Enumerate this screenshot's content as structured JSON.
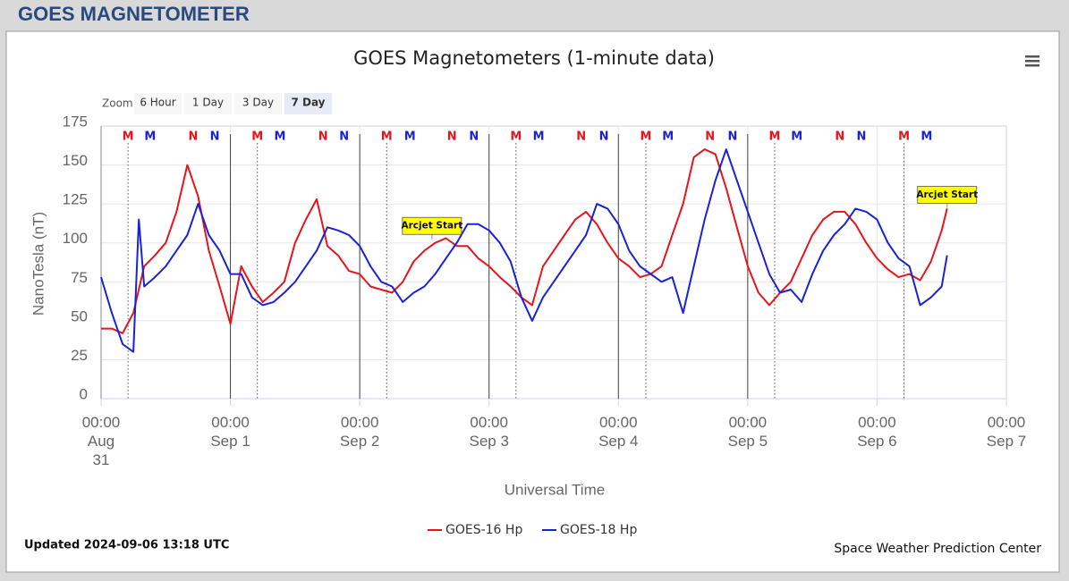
{
  "header": {
    "title": "GOES MAGNETOMETER"
  },
  "chart_data": {
    "type": "line",
    "title": "GOES Magnetometers (1-minute data)",
    "ylabel": "NanoTesla (nT)",
    "xlabel": "Universal Time",
    "xlim": [
      0,
      168
    ],
    "ylim": [
      0,
      175
    ],
    "yticks": [
      0,
      25,
      50,
      75,
      100,
      125,
      150,
      175
    ],
    "xticks": [
      {
        "value": 0,
        "label": "00:00 Aug 31"
      },
      {
        "value": 24,
        "label": "00:00 Sep 1"
      },
      {
        "value": 48,
        "label": "00:00 Sep 2"
      },
      {
        "value": 72,
        "label": "00:00 Sep 3"
      },
      {
        "value": 96,
        "label": "00:00 Sep 4"
      },
      {
        "value": 120,
        "label": "00:00 Sep 5"
      },
      {
        "value": 144,
        "label": "00:00 Sep 6"
      },
      {
        "value": 168,
        "label": "00:00 Sep 7"
      }
    ],
    "day_lines": [
      24,
      48,
      72,
      96,
      120
    ],
    "grid": true,
    "series": [
      {
        "name": "GOES-16 Hp",
        "color": "#e8141b",
        "x": [
          0,
          2,
          4,
          6,
          8,
          10,
          12,
          14,
          16,
          18,
          20,
          22,
          24,
          26,
          28,
          30,
          32,
          34,
          36,
          38,
          40,
          42,
          44,
          46,
          48,
          50,
          52,
          54,
          56,
          58,
          60,
          62,
          64,
          66,
          68,
          70,
          72,
          74,
          76,
          78,
          80,
          82,
          84,
          86,
          88,
          90,
          92,
          94,
          96,
          98,
          100,
          102,
          104,
          106,
          108,
          110,
          112,
          114,
          116,
          118,
          120,
          122,
          124,
          126,
          128,
          130,
          132,
          134,
          136,
          138,
          140,
          142,
          144,
          146,
          148,
          150,
          152,
          154,
          156,
          157
        ],
        "values": [
          45,
          45,
          42,
          55,
          85,
          92,
          100,
          120,
          150,
          130,
          95,
          72,
          48,
          85,
          72,
          62,
          68,
          75,
          100,
          115,
          128,
          98,
          92,
          82,
          80,
          72,
          70,
          68,
          75,
          88,
          95,
          100,
          103,
          98,
          98,
          90,
          85,
          78,
          72,
          65,
          60,
          85,
          95,
          105,
          115,
          120,
          112,
          100,
          90,
          85,
          78,
          80,
          85,
          105,
          125,
          155,
          160,
          157,
          135,
          110,
          85,
          68,
          60,
          68,
          75,
          90,
          105,
          115,
          120,
          120,
          112,
          100,
          90,
          83,
          78,
          80,
          76,
          88,
          108,
          122
        ]
      },
      {
        "name": "GOES-18 Hp",
        "color": "#1a22d8",
        "x": [
          0,
          2,
          4,
          6,
          7,
          8,
          10,
          12,
          14,
          16,
          18,
          20,
          22,
          24,
          26,
          28,
          30,
          32,
          34,
          36,
          38,
          40,
          42,
          44,
          46,
          48,
          50,
          52,
          54,
          56,
          58,
          60,
          62,
          64,
          66,
          68,
          70,
          72,
          74,
          76,
          78,
          80,
          82,
          84,
          86,
          88,
          90,
          92,
          94,
          96,
          98,
          100,
          102,
          104,
          106,
          108,
          110,
          112,
          114,
          116,
          118,
          120,
          122,
          124,
          126,
          128,
          130,
          132,
          134,
          136,
          138,
          140,
          142,
          144,
          146,
          148,
          150,
          152,
          154,
          156,
          157
        ],
        "values": [
          78,
          55,
          35,
          30,
          115,
          72,
          78,
          85,
          95,
          105,
          125,
          105,
          95,
          80,
          80,
          65,
          60,
          62,
          68,
          75,
          85,
          95,
          110,
          108,
          105,
          98,
          85,
          75,
          72,
          62,
          68,
          72,
          80,
          90,
          100,
          112,
          112,
          108,
          100,
          88,
          65,
          50,
          65,
          75,
          85,
          95,
          105,
          125,
          122,
          112,
          95,
          85,
          80,
          75,
          78,
          55,
          85,
          115,
          140,
          160,
          140,
          120,
          100,
          80,
          68,
          70,
          62,
          80,
          95,
          105,
          112,
          122,
          120,
          115,
          100,
          90,
          85,
          60,
          65,
          72,
          92
        ]
      }
    ],
    "markers": [
      {
        "label": "M",
        "color": "#e8141b",
        "dotted": true,
        "x": [
          5,
          29,
          53,
          77,
          101.1,
          125,
          149
        ]
      },
      {
        "label": "M",
        "color": "#1a22d8",
        "dotted": false,
        "x": [
          9.1,
          33.2,
          57.3,
          81.2,
          105.2,
          129.1,
          153.2
        ]
      },
      {
        "label": "N",
        "color": "#e8141b",
        "dotted": false,
        "x": [
          17.1,
          41.2,
          65.1,
          89.1,
          113,
          137.1
        ]
      },
      {
        "label": "N",
        "color": "#1a22d8",
        "dotted": false,
        "x": [
          21.1,
          45.1,
          69.2,
          93.3,
          117.2,
          141.1
        ]
      }
    ],
    "annotations": [
      {
        "text": "Arcjet Start",
        "x": 61.4,
        "y": 102
      },
      {
        "text": "Arcjet Start",
        "x": 157,
        "y": 122
      }
    ],
    "zoom": {
      "label": "Zoom",
      "buttons": [
        "6 Hour",
        "1 Day",
        "3 Day",
        "7 Day"
      ],
      "selected": 3
    },
    "updated": "Updated 2024-09-06 13:18 UTC",
    "credit": "Space Weather Prediction Center"
  }
}
